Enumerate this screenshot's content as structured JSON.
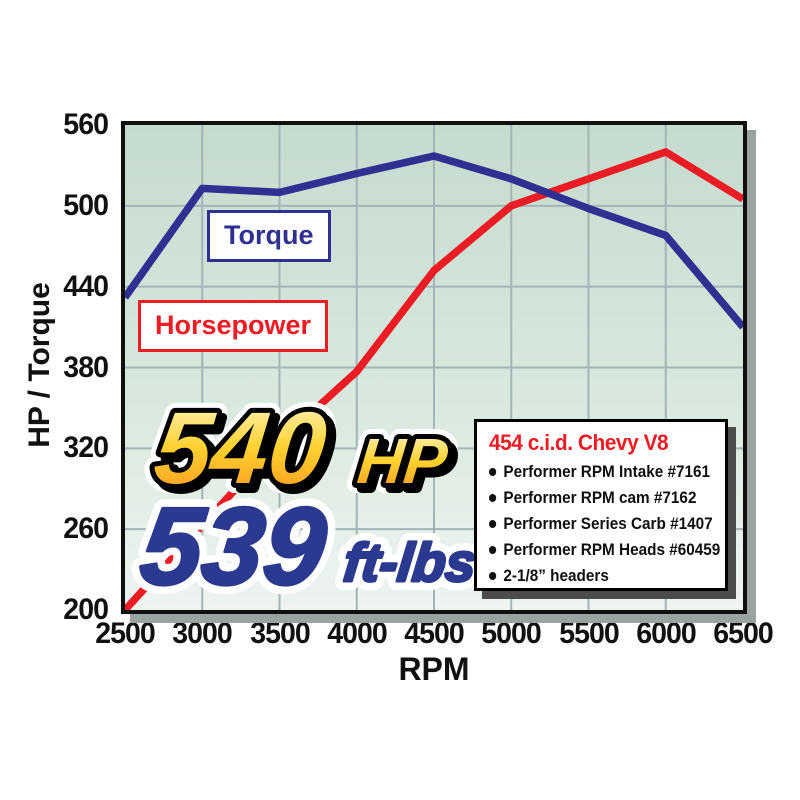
{
  "chart_data": {
    "type": "line",
    "x": [
      2500,
      3000,
      3500,
      4000,
      4500,
      5000,
      5500,
      6000,
      6500
    ],
    "series": [
      {
        "name": "Horsepower",
        "color": "#ec1c24",
        "values": [
          200,
          263,
          325,
          377,
          452,
          500,
          520,
          540,
          505
        ]
      },
      {
        "name": "Torque",
        "color": "#2e3192",
        "values": [
          432,
          513,
          510,
          524,
          537,
          520,
          498,
          478,
          410
        ]
      }
    ],
    "xlabel": "RPM",
    "ylabel": "HP / Torque",
    "xlim": [
      2500,
      6500
    ],
    "ylim": [
      200,
      560
    ],
    "xticks": [
      2500,
      3000,
      3500,
      4000,
      4500,
      5000,
      5500,
      6000,
      6500
    ],
    "yticks": [
      200,
      260,
      320,
      380,
      440,
      500,
      560
    ],
    "grid": true,
    "legend_position": "labeled boxes inside plot"
  },
  "labels": {
    "torque_box": "Torque",
    "horsepower_box": "Horsepower"
  },
  "highlight": {
    "hp_value": "540",
    "hp_unit": "HP",
    "tq_value": "539",
    "tq_unit": "ft-lbs"
  },
  "spec_box": {
    "title": "454 c.i.d. Chevy V8",
    "items": [
      "Performer RPM Intake #7161",
      "Performer RPM cam #7162",
      "Performer Series Carb #1407",
      "Performer RPM Heads #60459",
      "2-1/8” headers"
    ]
  },
  "colors": {
    "torque_line": "#2e3192",
    "horsepower_line": "#ec1c24",
    "gridline": "#a3b4b8",
    "plot_border": "#101010",
    "plot_shadow": "#9aa2a2",
    "plot_bg_top": "#c5dbce",
    "plot_bg_bottom": "#eef4f0",
    "spec_title": "#ed1c24",
    "spec_shadow": "#4d4d4d",
    "big_tq_text": "#2b3990",
    "gold_gradient": [
      "#fffad2",
      "#ffd12f",
      "#f6921e"
    ]
  }
}
